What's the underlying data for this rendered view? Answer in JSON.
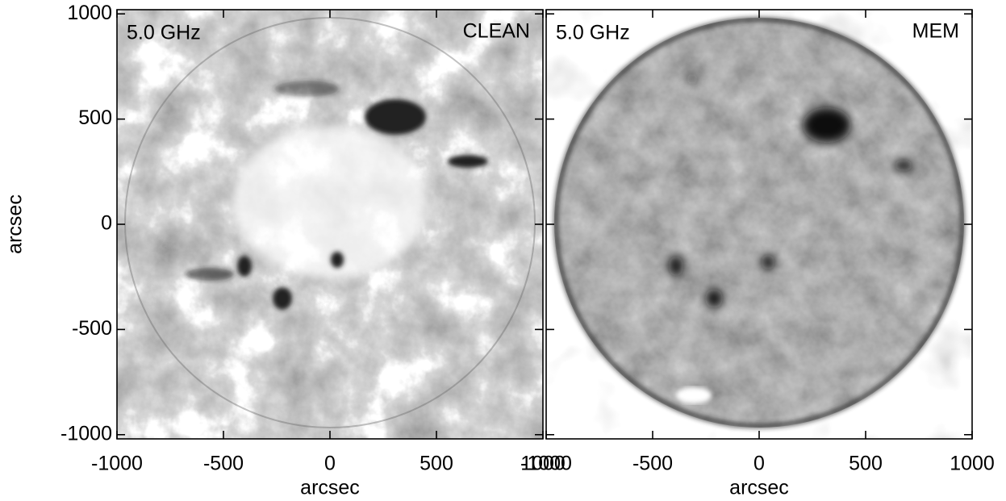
{
  "chart_data": [
    {
      "type": "image",
      "title": "5.0 GHz",
      "subtitle": "CLEAN",
      "xlabel": "arcsec",
      "ylabel": "arcsec",
      "xlim": [
        -1000,
        1000
      ],
      "ylim": [
        -1020,
        1020
      ],
      "xticks": [
        -1000,
        -500,
        0,
        500,
        1000
      ],
      "yticks": [
        -1000,
        -500,
        0,
        500,
        1000
      ],
      "show_ytick_labels": true
    },
    {
      "type": "image",
      "title": "5.0 GHz",
      "subtitle": "MEM",
      "xlabel": "arcsec",
      "xlim": [
        -1000,
        1000
      ],
      "ylim": [
        -1020,
        1020
      ],
      "xticks": [
        -1000,
        -500,
        0,
        500,
        1000
      ],
      "yticks": [
        -1000,
        -500,
        0,
        500,
        1000
      ],
      "show_ytick_labels": false
    }
  ]
}
